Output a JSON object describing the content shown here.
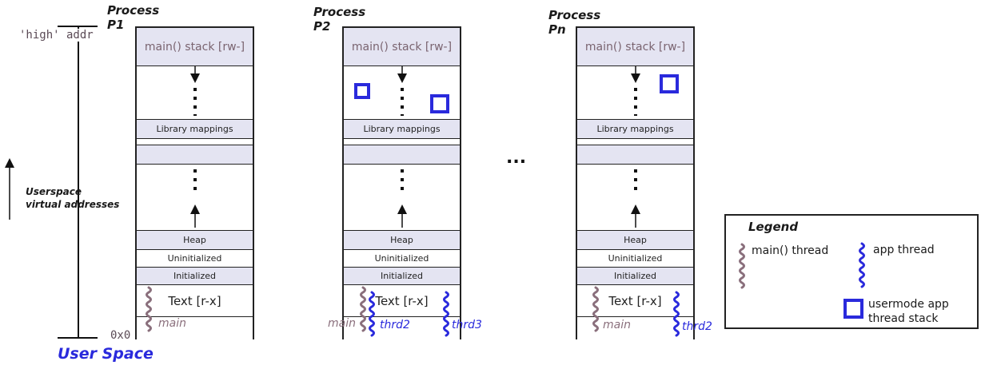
{
  "axis": {
    "high_label": "'high' addr",
    "low_label": "0x0",
    "arrow_label": "Userspace\nvirtual addresses",
    "title": "User Space"
  },
  "ellipsis": "...",
  "processes": [
    {
      "title": "Process\nP1",
      "stack": "main() stack [rw-]",
      "lib": "Library mappings",
      "heap": "Heap",
      "uninit": "Uninitialized",
      "init": "Initialized",
      "text": "Text [r-x]",
      "threads": [
        {
          "kind": "main",
          "label": "main"
        }
      ],
      "thread_stacks": 0
    },
    {
      "title": "Process\nP2",
      "stack": "main() stack [rw-]",
      "lib": "Library mappings",
      "heap": "Heap",
      "uninit": "Uninitialized",
      "init": "Initialized",
      "text": "Text [r-x]",
      "threads": [
        {
          "kind": "main",
          "label": "main"
        },
        {
          "kind": "app",
          "label": "thrd2"
        },
        {
          "kind": "app",
          "label": "thrd3"
        }
      ],
      "thread_stacks": 2
    },
    {
      "title": "Process\nPn",
      "stack": "main() stack [rw-]",
      "lib": "Library mappings",
      "heap": "Heap",
      "uninit": "Uninitialized",
      "init": "Initialized",
      "text": "Text [r-x]",
      "threads": [
        {
          "kind": "main",
          "label": "main"
        },
        {
          "kind": "app",
          "label": "thrd2"
        }
      ],
      "thread_stacks": 1
    }
  ],
  "legend": {
    "title": "Legend",
    "main_thread": "main() thread",
    "app_thread": "app thread",
    "thread_stack": "usermode app\nthread stack"
  },
  "colors": {
    "main_thread": "#8a6f7c",
    "app_thread": "#2a2adc",
    "segment_shade": "#e4e4f2"
  }
}
